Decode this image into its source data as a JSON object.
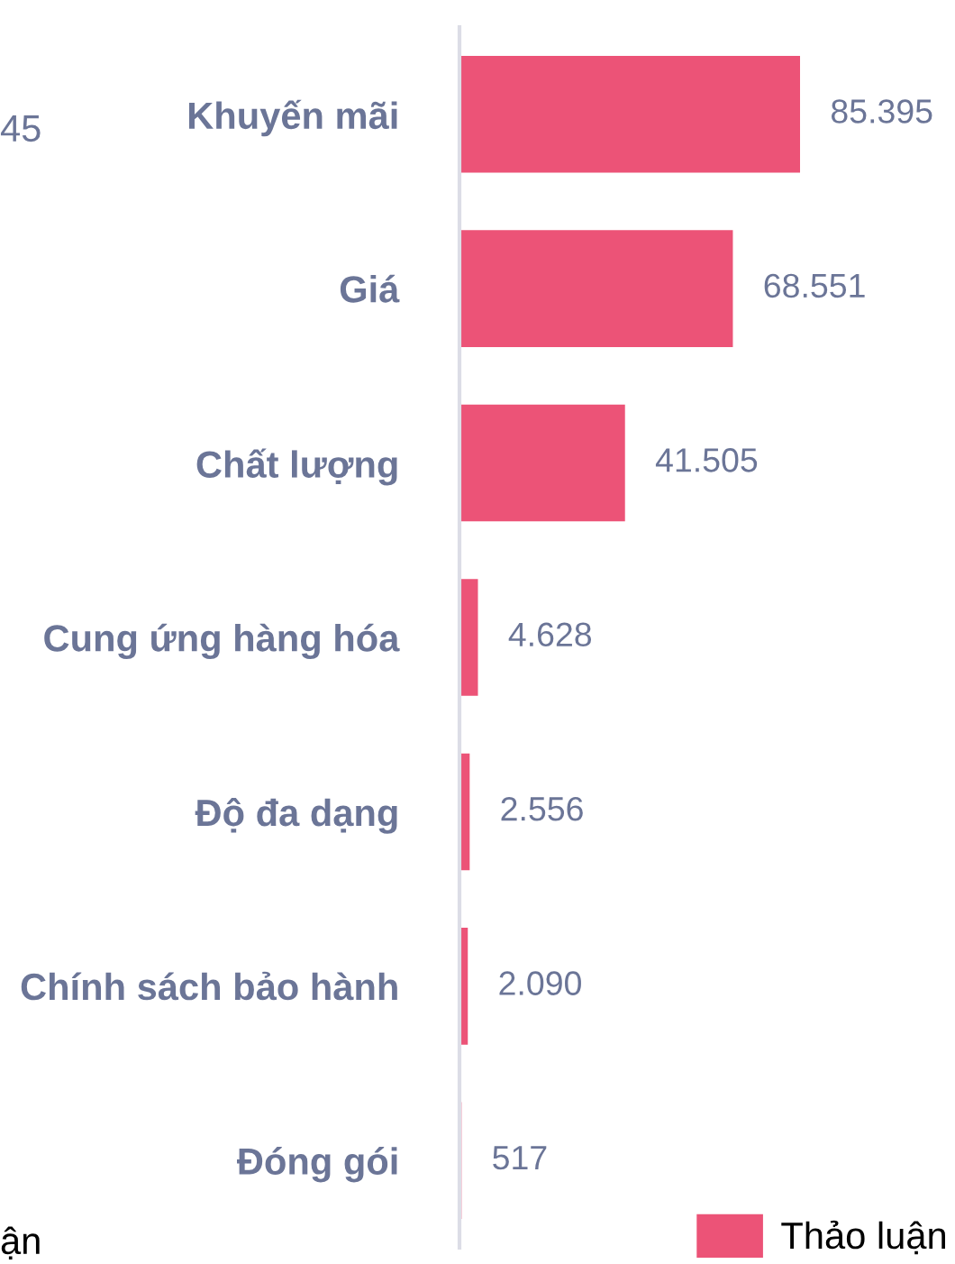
{
  "chart_data": {
    "type": "bar",
    "orientation": "horizontal",
    "categories": [
      "Khuyến mãi",
      "Giá",
      "Chất lượng",
      "Cung ứng hàng hóa",
      "Độ đa dạng",
      "Chính sách bảo hành",
      "Đóng gói"
    ],
    "series": [
      {
        "name": "Thảo luận",
        "color": "#ec5377",
        "values": [
          85395,
          68551,
          41505,
          4628,
          2556,
          2090,
          517
        ],
        "value_labels": [
          "85.395",
          "68.551",
          "41.505",
          "4.628",
          "2.556",
          "2.090",
          "517"
        ]
      }
    ],
    "legend": "bottom right",
    "grid": false,
    "annotations": [
      "45",
      "ận"
    ]
  }
}
